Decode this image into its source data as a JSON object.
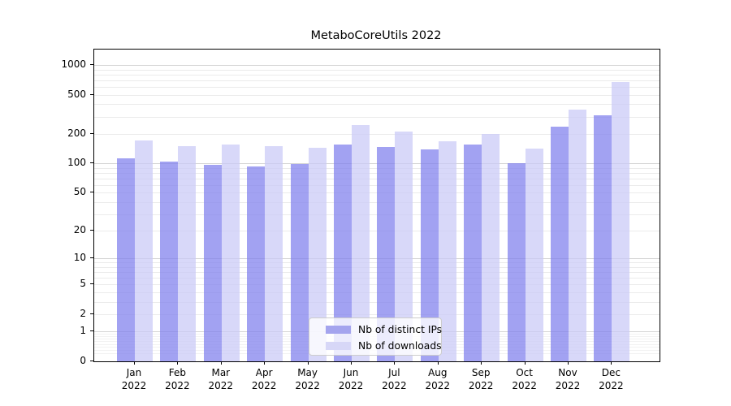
{
  "chart_data": {
    "type": "bar",
    "title": "MetaboCoreUtils 2022",
    "x_categories": [
      "Jan",
      "Feb",
      "Mar",
      "Apr",
      "May",
      "Jun",
      "Jul",
      "Aug",
      "Sep",
      "Oct",
      "Nov",
      "Dec"
    ],
    "x_sub_label": "2022",
    "series": [
      {
        "name": "Nb of distinct IPs",
        "color": "rgba(126,126,237,0.72)",
        "legend_color": "#a4a4ee",
        "values": [
          112,
          105,
          97,
          94,
          99,
          156,
          147,
          139,
          155,
          101,
          237,
          308
        ]
      },
      {
        "name": "Nb of downloads",
        "color": "rgba(201,201,246,0.72)",
        "legend_color": "#d7d7f7",
        "values": [
          171,
          151,
          156,
          149,
          144,
          248,
          210,
          168,
          200,
          142,
          355,
          675
        ]
      }
    ],
    "y_scale": "log1p",
    "y_ticks": [
      0,
      1,
      2,
      5,
      10,
      20,
      50,
      100,
      200,
      500,
      1000
    ],
    "y_max": 1435,
    "grid": true,
    "legend_position": "lower center"
  }
}
